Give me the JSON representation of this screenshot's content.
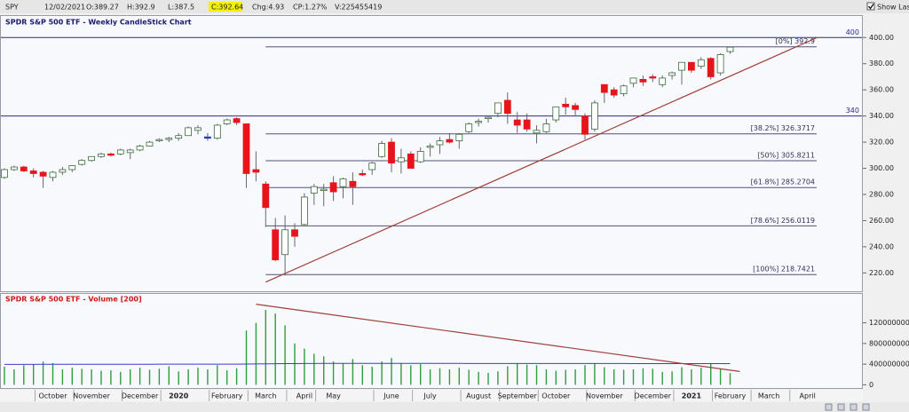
{
  "header": {
    "symbol": "SPY",
    "date": "12/02/2021",
    "open": "O:389.27",
    "high": "H:392.9",
    "low": "L:387.5",
    "close": "C:392.64",
    "change": "Chg:4.93",
    "change_pct": "CP:1.27%",
    "volume": "V:225455419",
    "show_last": "Show Last"
  },
  "chart_data": [
    {
      "type": "candlestick",
      "title": "SPDR S&P 500 ETF - Weekly CandleStick Chart",
      "open": [
        293,
        299,
        301,
        298,
        297,
        293,
        297,
        299,
        303,
        306,
        309,
        311,
        311,
        312,
        314,
        317,
        321,
        322,
        323,
        325,
        329,
        324,
        323,
        334,
        338,
        334,
        299,
        288,
        253,
        234,
        253,
        257,
        281,
        283,
        289,
        286,
        290,
        296,
        299,
        309,
        320,
        305,
        311,
        305,
        316,
        318,
        322,
        321,
        328,
        335,
        338,
        342,
        352,
        337,
        337,
        327,
        328,
        337,
        349,
        348,
        340,
        330,
        364,
        360,
        357,
        365,
        368,
        370,
        364,
        371,
        375,
        381,
        378,
        384,
        373,
        389.27,
        null,
        null,
        null,
        null,
        null,
        null,
        null,
        null,
        null,
        null,
        null,
        null,
        null
      ],
      "high": [
        300,
        302,
        302,
        300,
        298,
        298,
        301,
        302,
        307,
        309,
        312,
        312,
        315,
        315,
        318,
        321,
        323,
        324,
        327,
        332,
        333,
        327,
        334,
        338,
        339,
        334,
        313,
        290,
        262,
        264,
        258,
        281,
        288,
        288,
        294,
        293,
        297,
        299,
        305,
        321,
        323,
        315,
        313,
        316,
        319,
        324,
        327,
        327,
        335,
        338,
        340,
        350,
        358,
        343,
        342,
        333,
        338,
        347,
        354,
        350,
        342,
        352,
        364,
        362,
        364,
        369,
        371,
        372,
        371,
        374,
        381,
        381,
        385,
        385,
        388,
        392.9,
        null,
        null,
        null,
        null,
        null,
        null,
        null,
        null,
        null,
        null,
        null,
        null,
        null
      ],
      "low": [
        292,
        298,
        297,
        293,
        285,
        290,
        295,
        297,
        302,
        305,
        308,
        309,
        310,
        307,
        313,
        317,
        320,
        320,
        321,
        325,
        326,
        321,
        322,
        333,
        333,
        285,
        290,
        255,
        229,
        218,
        240,
        256,
        272,
        271,
        275,
        277,
        272,
        294,
        295,
        308,
        297,
        296,
        300,
        304,
        309,
        311,
        319,
        315,
        327,
        332,
        335,
        339,
        334,
        327,
        328,
        319,
        327,
        335,
        341,
        340,
        322,
        328,
        350,
        354,
        355,
        362,
        363,
        366,
        362,
        368,
        364,
        373,
        376,
        368,
        371,
        387.5,
        null,
        null,
        null,
        null,
        null,
        null,
        null,
        null,
        null,
        null,
        null,
        null,
        null
      ],
      "close": [
        299,
        301,
        298,
        296,
        294,
        297,
        299,
        302,
        306,
        309,
        311,
        310,
        314,
        314,
        317,
        320,
        322,
        323,
        325,
        331,
        331,
        324,
        333,
        337,
        335,
        296,
        297,
        270,
        230,
        253,
        248,
        278,
        286,
        284,
        282,
        292,
        286,
        295,
        304,
        319,
        304,
        308,
        300,
        313,
        317,
        321,
        320,
        326,
        334,
        336,
        339,
        350,
        342,
        333,
        330,
        329,
        334,
        347,
        347,
        345,
        326,
        350,
        358,
        356,
        363,
        369,
        366,
        369,
        369,
        373,
        381,
        375,
        383,
        370,
        387,
        392.64,
        null,
        null,
        null,
        null,
        null,
        null,
        null,
        null,
        null,
        null,
        null,
        null,
        null
      ],
      "up_color": "#ffffff",
      "down_color": "#e8141b",
      "flat_color": "#1f3fbf",
      "ylim": [
        206,
        409
      ],
      "yticks": [
        {
          "value": 220,
          "label": "220.00"
        },
        {
          "value": 240,
          "label": "240.00"
        },
        {
          "value": 260,
          "label": "260.00"
        },
        {
          "value": 280,
          "label": "280.00"
        },
        {
          "value": 300,
          "label": "300.00"
        },
        {
          "value": 320,
          "label": "320.00"
        },
        {
          "value": 340,
          "label": "340.00"
        },
        {
          "value": 360,
          "label": "360.00"
        },
        {
          "value": 380,
          "label": "380.00"
        },
        {
          "value": 400,
          "label": "400.00"
        }
      ],
      "levels": [
        400,
        340
      ],
      "level_color": "#2b2b8c",
      "fib_levels": [
        {
          "value": 392.9,
          "label": "[0%] 392.9"
        },
        {
          "value": 326.3717,
          "label": "[38.2%] 326.3717"
        },
        {
          "value": 305.8211,
          "label": "[50%] 305.8211"
        },
        {
          "value": 285.2704,
          "label": "[61.8%] 285.2704"
        },
        {
          "value": 256.0119,
          "label": "[78.6%] 256.0119"
        },
        {
          "value": 218.7421,
          "label": "[100%] 218.7421"
        }
      ],
      "fib_color": "#50507a",
      "trendline": {
        "from": [
          27,
          213
        ],
        "to": [
          84,
          400
        ],
        "color": "#a0403a"
      }
    },
    {
      "type": "bar",
      "title": "SPDR S&P 500 ETF - Volume [200]",
      "categories": [
        null,
        null,
        null,
        null,
        null,
        "October",
        null,
        null,
        null,
        "November",
        null,
        null,
        null,
        null,
        "December",
        null,
        null,
        null,
        "2020",
        null,
        null,
        null,
        null,
        "February",
        null,
        null,
        null,
        "March",
        null,
        null,
        null,
        "April",
        null,
        null,
        "May",
        null,
        null,
        null,
        null,
        null,
        "June",
        null,
        null,
        null,
        "July",
        null,
        null,
        null,
        null,
        "August",
        null,
        null,
        null,
        "September",
        null,
        null,
        null,
        "October",
        null,
        null,
        null,
        null,
        "November",
        null,
        null,
        null,
        null,
        "December",
        null,
        null,
        null,
        "2021",
        null,
        null,
        null,
        "February",
        null,
        null,
        null,
        "March",
        null,
        null,
        null,
        "April",
        null,
        null,
        null,
        null,
        null
      ],
      "values": [
        350000000,
        300000000,
        380000000,
        400000000,
        450000000,
        420000000,
        300000000,
        330000000,
        310000000,
        300000000,
        270000000,
        280000000,
        250000000,
        300000000,
        330000000,
        290000000,
        310000000,
        360000000,
        260000000,
        300000000,
        330000000,
        300000000,
        380000000,
        280000000,
        320000000,
        1050000000,
        1200000000,
        1450000000,
        1380000000,
        1150000000,
        800000000,
        700000000,
        600000000,
        550000000,
        450000000,
        420000000,
        500000000,
        380000000,
        350000000,
        450000000,
        520000000,
        420000000,
        380000000,
        400000000,
        300000000,
        320000000,
        300000000,
        330000000,
        290000000,
        250000000,
        230000000,
        260000000,
        360000000,
        420000000,
        390000000,
        380000000,
        300000000,
        270000000,
        290000000,
        300000000,
        380000000,
        420000000,
        340000000,
        300000000,
        290000000,
        300000000,
        320000000,
        310000000,
        250000000,
        260000000,
        340000000,
        300000000,
        330000000,
        420000000,
        300000000,
        225455419,
        null,
        null,
        null,
        null,
        null,
        null,
        null,
        null,
        null,
        null,
        null,
        null,
        null
      ],
      "average": [
        395000000,
        395000000,
        396000000,
        396000000,
        397000000,
        397000000,
        397000000,
        398000000,
        398000000,
        398000000,
        398000000,
        398000000,
        398000000,
        398000000,
        398000000,
        398000000,
        399000000,
        399000000,
        399000000,
        399000000,
        399000000,
        399000000,
        399000000,
        399000000,
        400000000,
        402000000,
        404000000,
        406000000,
        408000000,
        410000000,
        411000000,
        412000000,
        413000000,
        414000000,
        414000000,
        414000000,
        414000000,
        414000000,
        414000000,
        414000000,
        414000000,
        414000000,
        414000000,
        414000000,
        414000000,
        414000000,
        414000000,
        414000000,
        413000000,
        413000000,
        413000000,
        413000000,
        413000000,
        413000000,
        413000000,
        413000000,
        413000000,
        412000000,
        412000000,
        412000000,
        412000000,
        412000000,
        412000000,
        412000000,
        412000000,
        411000000,
        411000000,
        411000000,
        411000000,
        411000000,
        411000000,
        411000000,
        411000000,
        410000000,
        410000000,
        410000000,
        null,
        null,
        null,
        null,
        null,
        null,
        null,
        null,
        null,
        null,
        null,
        null,
        null
      ],
      "color": "#2e9e3e",
      "average_color": "#3a3ad0",
      "ylim": [
        -80000000,
        1760000000
      ],
      "yticks": [
        0,
        400000000,
        800000000,
        1200000000
      ],
      "trendline": {
        "from": [
          26,
          1560000000
        ],
        "to": [
          76,
          257000000
        ],
        "color": "#a0403a"
      }
    }
  ]
}
